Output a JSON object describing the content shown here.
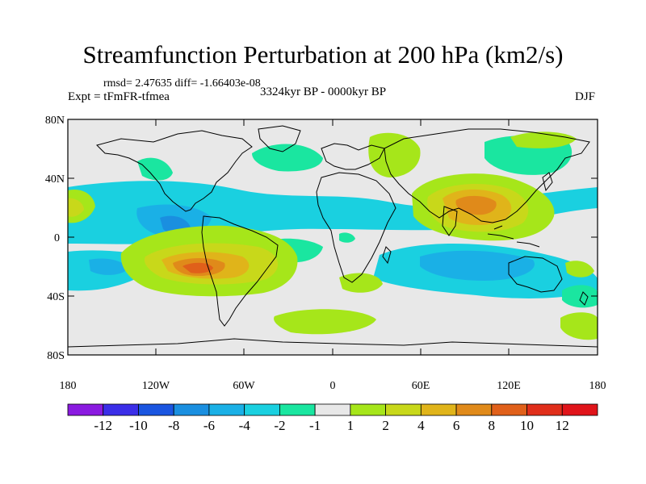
{
  "title": "Streamfunction Perturbation at 200 hPa (km2/s)",
  "stats": "rmsd= 2.47635 diff= -1.66403e-08",
  "expt": "Expt = tFmFR-tfmea",
  "period": "3324kyr BP - 0000kyr BP",
  "season": "DJF",
  "y_ticks": [
    "80N",
    "40N",
    "0",
    "40S",
    "80S"
  ],
  "x_ticks": [
    "180",
    "120W",
    "60W",
    "0",
    "60E",
    "120E",
    "180"
  ],
  "colorbar": {
    "labels": [
      "-12",
      "-10",
      "-8",
      "-6",
      "-4",
      "-2",
      "-1",
      "1",
      "2",
      "4",
      "6",
      "8",
      "10",
      "12"
    ],
    "colors": [
      "#8a1ae0",
      "#3b2ee8",
      "#1a55e0",
      "#1a8fe0",
      "#1ab0e6",
      "#1ad0e0",
      "#1ae6a0",
      "#e8e8e8",
      "#a6e61a",
      "#c8d81a",
      "#e0b41a",
      "#e08a1a",
      "#e0601a",
      "#e02e1a",
      "#e0141a"
    ]
  },
  "palette": {
    "background": "#e8e8e8",
    "frame": "#000000",
    "coast": "#000000"
  }
}
